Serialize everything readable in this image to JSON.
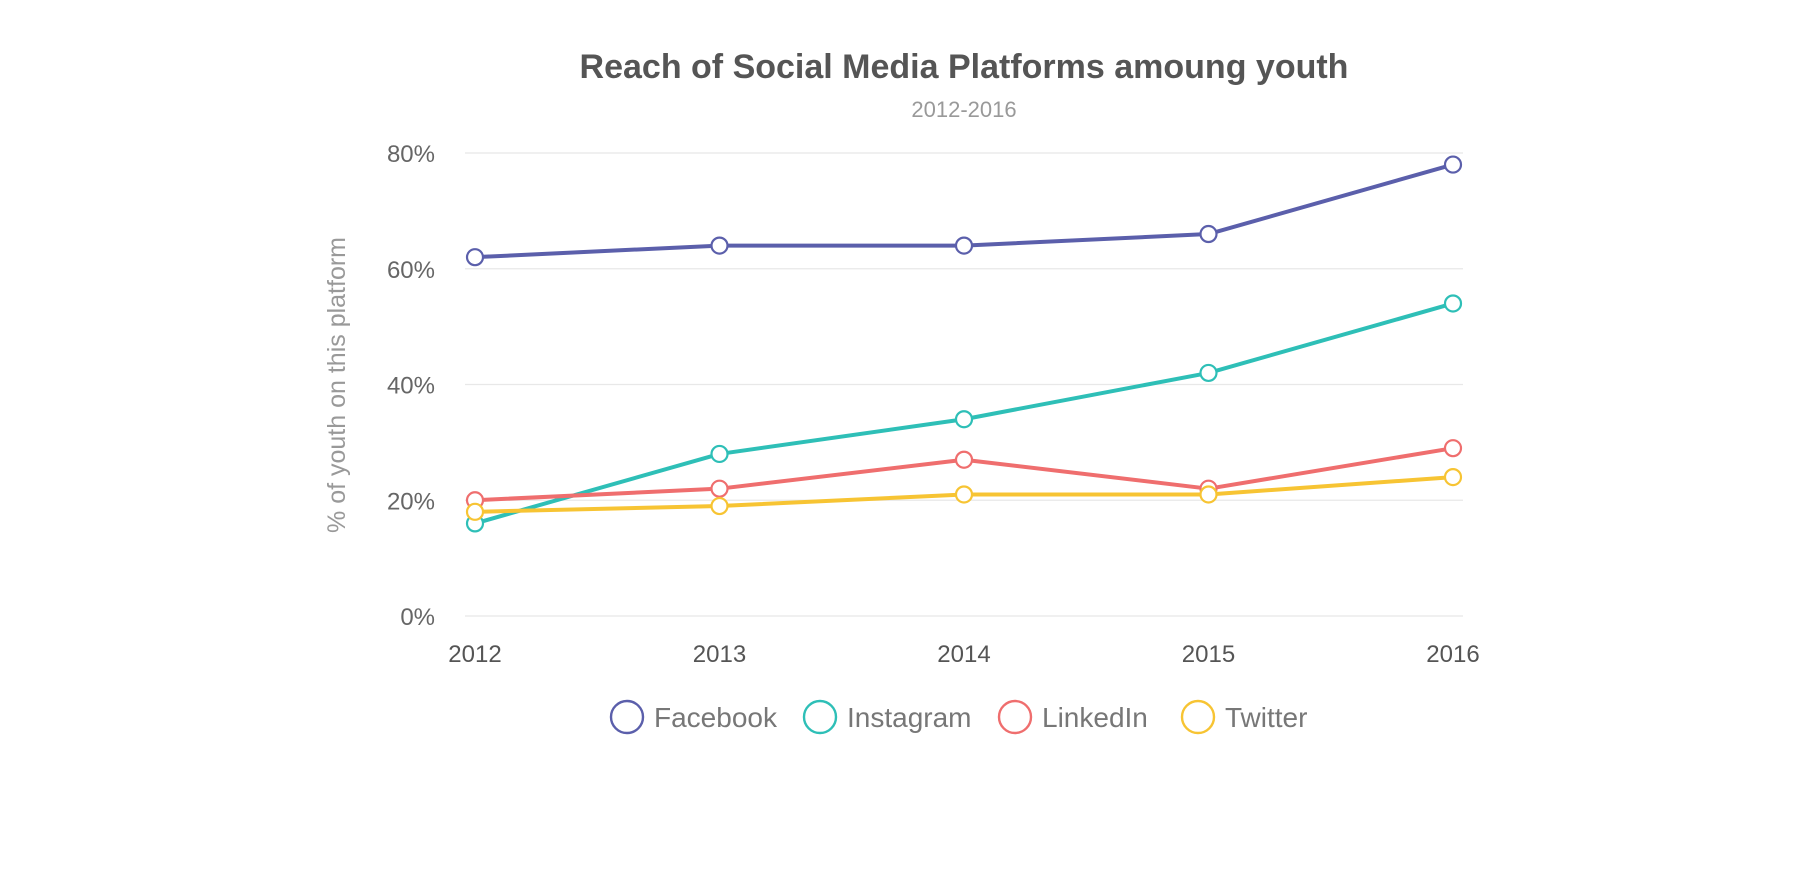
{
  "chart_data": {
    "type": "line",
    "title": "Reach of Social Media Platforms amoung youth",
    "subtitle": "2012-2016",
    "xlabel": "",
    "ylabel": "% of youth on this platform",
    "x": [
      "2012",
      "2013",
      "2014",
      "2015",
      "2016"
    ],
    "ylim": [
      0,
      80
    ],
    "yticks": [
      0,
      20,
      40,
      60,
      80
    ],
    "ytick_labels": [
      "0%",
      "20%",
      "40%",
      "60%",
      "80%"
    ],
    "grid": true,
    "legend": "bottom",
    "series": [
      {
        "name": "Facebook",
        "color": "#5b5fab",
        "values": [
          62,
          64,
          64,
          66,
          78
        ]
      },
      {
        "name": "Instagram",
        "color": "#2ebfb7",
        "values": [
          16,
          28,
          34,
          42,
          54
        ]
      },
      {
        "name": "LinkedIn",
        "color": "#ef6e6e",
        "values": [
          20,
          22,
          27,
          22,
          29
        ]
      },
      {
        "name": "Twitter",
        "color": "#f7c433",
        "values": [
          18,
          19,
          21,
          21,
          24
        ]
      }
    ]
  }
}
